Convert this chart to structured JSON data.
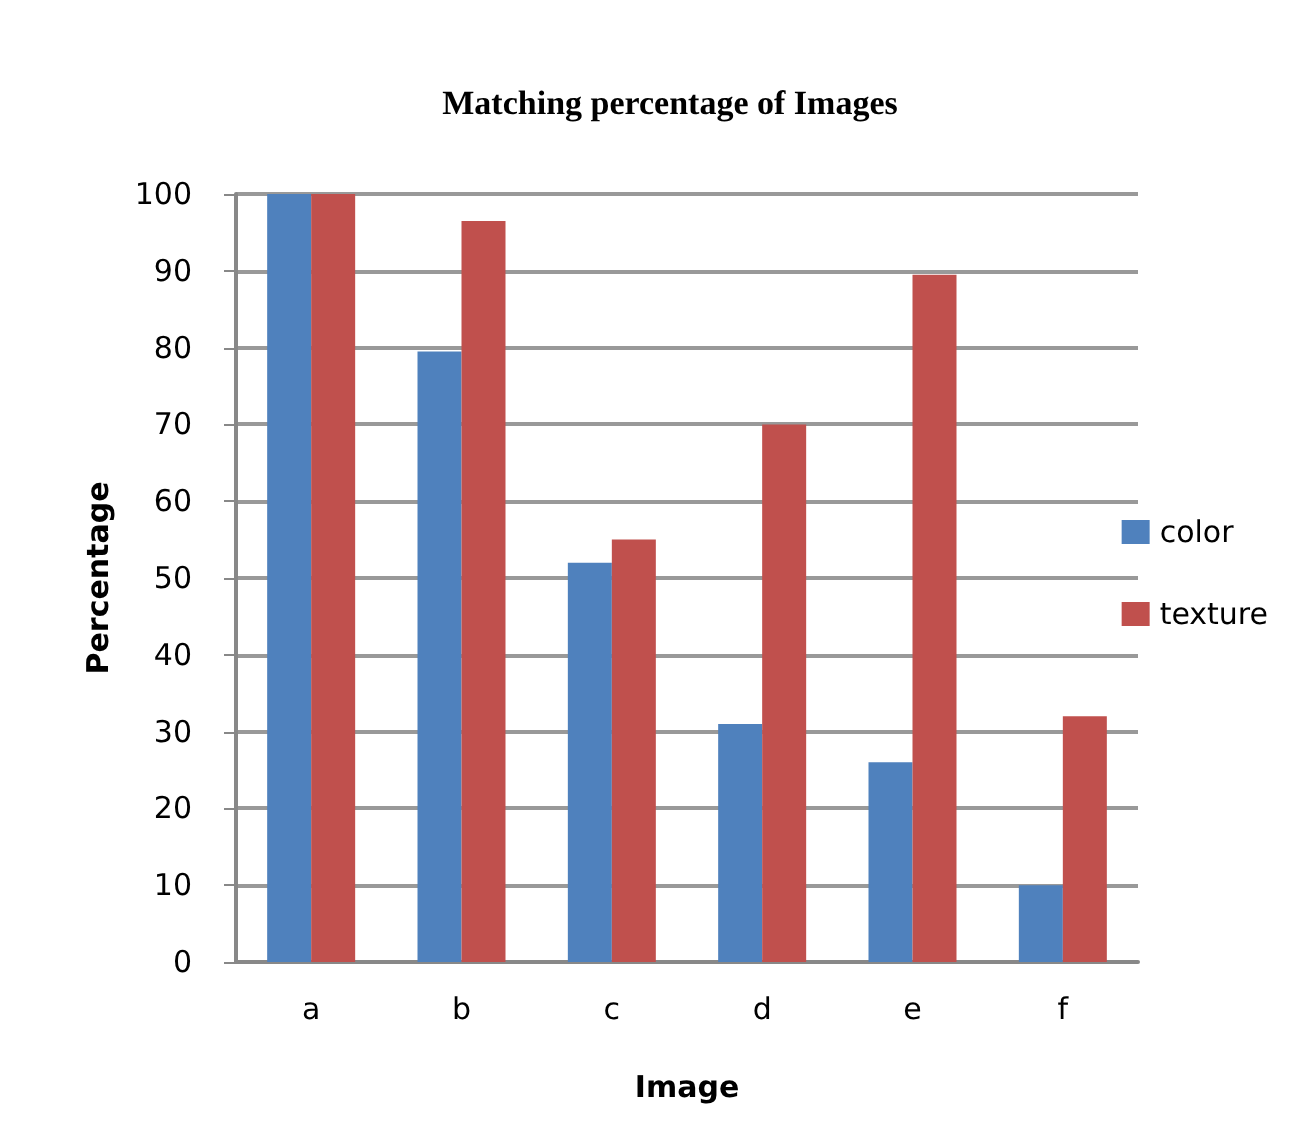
{
  "chart_data": {
    "type": "bar",
    "title": "Matching percentage of Images",
    "xlabel": "Image",
    "ylabel": "Percentage",
    "categories": [
      "a",
      "b",
      "c",
      "d",
      "e",
      "f"
    ],
    "series": [
      {
        "name": "color",
        "color": "#4f81bd",
        "values": [
          100,
          79.5,
          52,
          31,
          26,
          10
        ]
      },
      {
        "name": "texture",
        "color": "#c0504d",
        "values": [
          100,
          96.5,
          55,
          70,
          89.5,
          32
        ]
      }
    ],
    "ylim": [
      0,
      100
    ],
    "yticks": [
      0,
      10,
      20,
      30,
      40,
      50,
      60,
      70,
      80,
      90,
      100
    ],
    "grid": "y",
    "legend": "right"
  }
}
